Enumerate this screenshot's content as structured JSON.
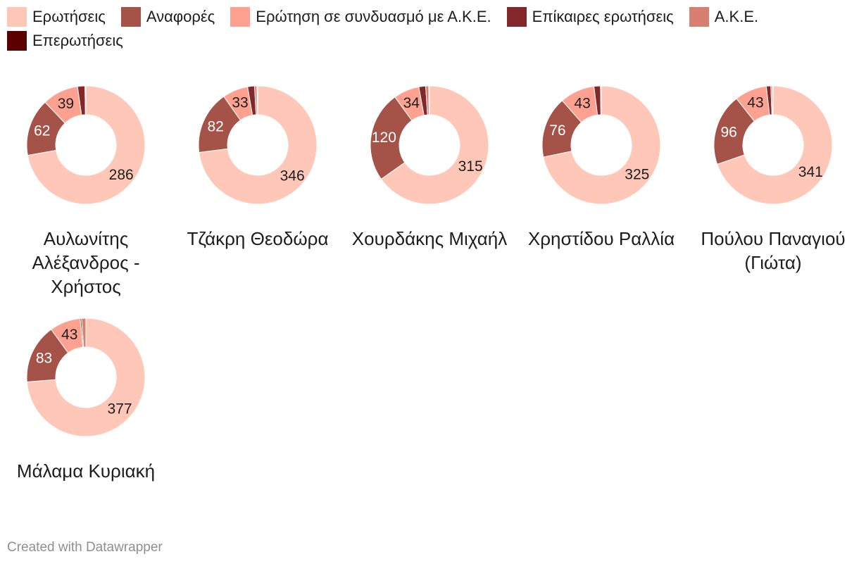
{
  "colors": [
    "#ffc7b7",
    "#a55248",
    "#fea190",
    "#82282a",
    "#d78072",
    "#5a0000"
  ],
  "legend": [
    "Ερωτήσεις",
    "Αναφορές",
    "Ερώτηση σε συνδυασμό με Α.Κ.Ε.",
    "Επίκαιρες ερωτήσεις",
    "Α.Κ.Ε.",
    "Επερωτήσεις"
  ],
  "footer": "Created with Datawrapper",
  "chart_data": {
    "type": "donut",
    "categories": [
      "Ερωτήσεις",
      "Αναφορές",
      "Ερώτηση σε συνδυασμό με Α.Κ.Ε.",
      "Επίκαιρες ερωτήσεις",
      "Α.Κ.Ε.",
      "Επερωτήσεις"
    ],
    "charts": [
      {
        "title": "Αυλωνίτης Αλέξανδρος - Χρήστος",
        "values": [
          286,
          62,
          39,
          8,
          1,
          0
        ]
      },
      {
        "title": "Τζάκρη Θεοδώρα",
        "values": [
          346,
          82,
          33,
          9,
          3,
          1
        ]
      },
      {
        "title": "Χουρδάκης Μιχαήλ",
        "values": [
          315,
          120,
          34,
          9,
          4,
          1
        ]
      },
      {
        "title": "Χρηστίδου Ραλλία",
        "values": [
          325,
          76,
          43,
          8,
          1,
          0
        ]
      },
      {
        "title": "Πούλου Παναγιού (Γιώτα)",
        "values": [
          341,
          96,
          43,
          6,
          2,
          1
        ]
      },
      {
        "title": "Μάλαμα Κυριακή",
        "values": [
          377,
          83,
          43,
          2,
          6,
          0
        ]
      }
    ]
  }
}
